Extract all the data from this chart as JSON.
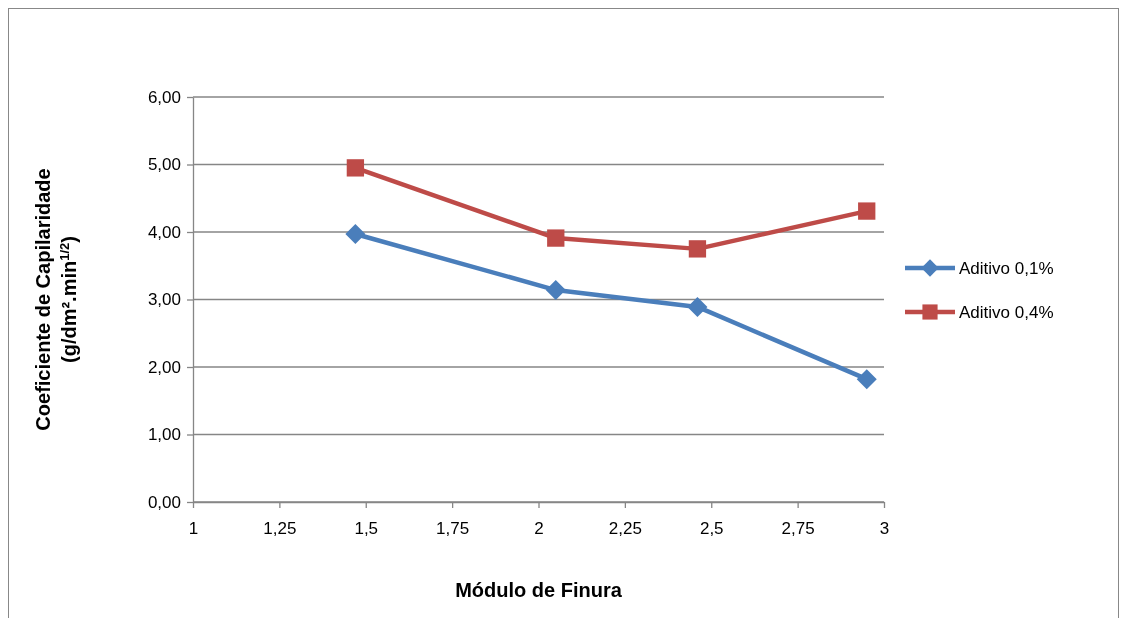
{
  "chart_data": {
    "type": "line",
    "xlabel": "Módulo de Finura",
    "ylabel": "Coeficiente de Capilaridade\n(g/dm².min$^{1/2}$)",
    "xlim": [
      1,
      3
    ],
    "xticks": [
      1,
      {
        "value": 1.25,
        "label": "1,25"
      },
      {
        "value": 1.5,
        "label": "1,5"
      },
      {
        "value": 1.75,
        "label": "1,75"
      },
      2,
      {
        "value": 2.25,
        "label": "2,25"
      },
      {
        "value": 2.5,
        "label": "2,5"
      },
      {
        "value": 2.75,
        "label": "2,75"
      },
      3
    ],
    "ylim": [
      0,
      6
    ],
    "yticks": [
      {
        "value": 0,
        "label": "0,00"
      },
      {
        "value": 1,
        "label": "1,00"
      },
      {
        "value": 2,
        "label": "2,00"
      },
      {
        "value": 3,
        "label": "3,00"
      },
      {
        "value": 4,
        "label": "4,00"
      },
      {
        "value": 5,
        "label": "5,00"
      },
      {
        "value": 6,
        "label": "6,00"
      }
    ],
    "grid": "y",
    "legend": "right",
    "line_style": "solid",
    "x": [
      1.47,
      2.05,
      2.46,
      2.95
    ],
    "series": [
      {
        "name": "Aditivo 0,1%",
        "color": "#4a7ebb",
        "marker": "diamond",
        "values": [
          3.97,
          3.14,
          2.89,
          1.82
        ]
      },
      {
        "name": "Aditivo 0,4%",
        "color": "#be4b48",
        "marker": "square",
        "values": [
          4.95,
          3.91,
          3.75,
          4.31
        ]
      }
    ]
  }
}
